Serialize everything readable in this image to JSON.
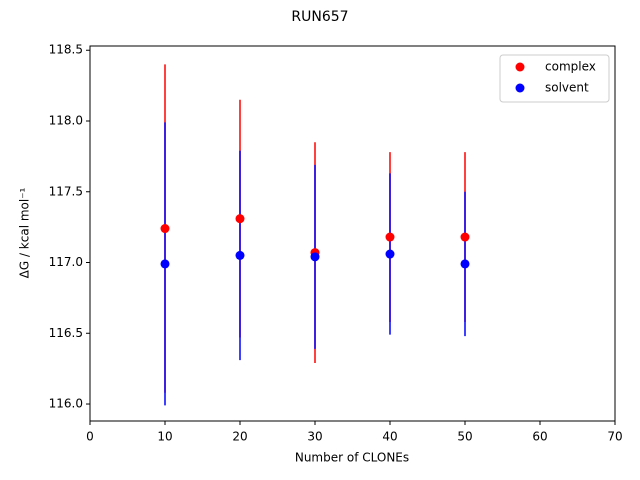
{
  "chart_data": {
    "type": "errorbar-scatter",
    "title": "RUN657",
    "xlabel": "Number of CLONEs",
    "ylabel": "ΔG / kcal mol⁻¹",
    "xlim": [
      0,
      70
    ],
    "xticks": [
      0,
      10,
      20,
      30,
      40,
      50,
      60,
      70
    ],
    "ylim": [
      115.88,
      118.53
    ],
    "yticks": [
      {
        "value": 116,
        "label": "116.0"
      },
      116.5,
      {
        "value": 117,
        "label": "117.0"
      },
      117.5,
      {
        "value": 118,
        "label": "118.0"
      },
      118.5
    ],
    "legend": "upper right",
    "series": [
      {
        "name": "complex",
        "color": "#ff0000",
        "x": [
          10,
          20,
          30,
          40,
          50
        ],
        "values": [
          117.24,
          117.31,
          117.07,
          117.18,
          117.18
        ],
        "errors": [
          1.16,
          0.84,
          0.78,
          0.6,
          0.6
        ]
      },
      {
        "name": "solvent",
        "color": "#0000ff",
        "x": [
          10,
          20,
          30,
          40,
          50
        ],
        "values": [
          116.99,
          117.05,
          117.04,
          117.06,
          116.99
        ],
        "errors": [
          1.0,
          0.74,
          0.65,
          0.57,
          0.51
        ]
      }
    ]
  }
}
